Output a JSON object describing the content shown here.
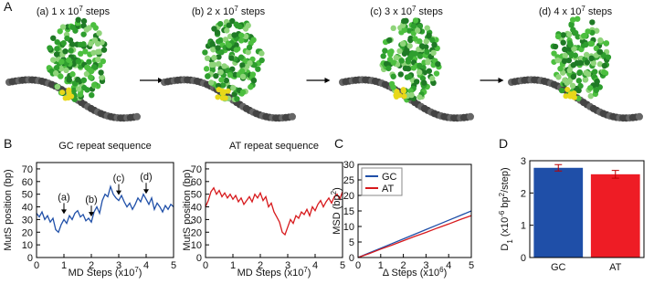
{
  "panel_labels": [
    "A",
    "B",
    "C",
    "D"
  ],
  "snapshots": [
    [
      {
        "text": "(a) 1 x 10"
      },
      {
        "text": "7",
        "shift": "super"
      },
      {
        "text": " steps"
      }
    ],
    [
      {
        "text": "(b) 2 x 10"
      },
      {
        "text": "7",
        "shift": "super"
      },
      {
        "text": " steps"
      }
    ],
    [
      {
        "text": "(c) 3 x 10"
      },
      {
        "text": "7",
        "shift": "super"
      },
      {
        "text": " steps"
      }
    ],
    [
      {
        "text": "(d) 4 x 10"
      },
      {
        "text": "7",
        "shift": "super"
      },
      {
        "text": " steps"
      }
    ]
  ],
  "chart_data": [
    {
      "type": "line",
      "title": "GC repeat sequence",
      "xlabel": [
        {
          "text": "MD Steps (x10"
        },
        {
          "text": "7",
          "shift": "super"
        },
        {
          "text": ")"
        }
      ],
      "ylabel": [
        {
          "text": "MutS position (bp)"
        }
      ],
      "xlim": [
        0,
        5
      ],
      "xticks": [
        0,
        1,
        2,
        3,
        4,
        5
      ],
      "ylim": [
        0,
        75
      ],
      "yticks": [
        0,
        10,
        20,
        30,
        40,
        50,
        60,
        70
      ],
      "x": [
        0,
        0.1,
        0.2,
        0.3,
        0.4,
        0.5,
        0.6,
        0.7,
        0.8,
        0.9,
        1,
        1.1,
        1.2,
        1.3,
        1.4,
        1.5,
        1.6,
        1.7,
        1.8,
        1.9,
        2,
        2.1,
        2.2,
        2.3,
        2.4,
        2.5,
        2.6,
        2.7,
        2.8,
        2.9,
        3,
        3.1,
        3.2,
        3.3,
        3.4,
        3.5,
        3.6,
        3.7,
        3.8,
        3.9,
        4,
        4.1,
        4.2,
        4.3,
        4.4,
        4.5,
        4.6,
        4.7,
        4.8,
        4.9,
        5
      ],
      "series": [
        {
          "color": "#1f4fa8",
          "values": [
            35,
            32,
            36,
            30,
            33,
            28,
            31,
            22,
            20,
            26,
            30,
            27,
            33,
            30,
            35,
            37,
            32,
            34,
            29,
            31,
            28,
            36,
            40,
            35,
            45,
            50,
            48,
            56,
            50,
            47,
            45,
            49,
            44,
            40,
            43,
            38,
            42,
            47,
            44,
            50,
            46,
            42,
            47,
            38,
            43,
            40,
            36,
            41,
            38,
            42,
            40
          ]
        }
      ],
      "annotations": [
        {
          "text": "(a)",
          "x": 1
        },
        {
          "text": "(b)",
          "x": 2
        },
        {
          "text": "(c)",
          "x": 3
        },
        {
          "text": "(d)",
          "x": 4
        }
      ]
    },
    {
      "type": "line",
      "title": "AT repeat sequence",
      "xlabel": [
        {
          "text": "MD Steps (x10"
        },
        {
          "text": "7",
          "shift": "super"
        },
        {
          "text": ")"
        }
      ],
      "ylabel": [
        {
          "text": "MutS position (bp)"
        }
      ],
      "xlim": [
        0,
        5
      ],
      "xticks": [
        0,
        1,
        2,
        3,
        4,
        5
      ],
      "ylim": [
        0,
        75
      ],
      "yticks": [
        0,
        10,
        20,
        30,
        40,
        50,
        60,
        70
      ],
      "x": [
        0,
        0.1,
        0.2,
        0.3,
        0.4,
        0.5,
        0.6,
        0.7,
        0.8,
        0.9,
        1,
        1.1,
        1.2,
        1.3,
        1.4,
        1.5,
        1.6,
        1.7,
        1.8,
        1.9,
        2,
        2.1,
        2.2,
        2.3,
        2.4,
        2.5,
        2.6,
        2.7,
        2.8,
        2.9,
        3,
        3.1,
        3.2,
        3.3,
        3.4,
        3.5,
        3.6,
        3.7,
        3.8,
        3.9,
        4,
        4.1,
        4.2,
        4.3,
        4.4,
        4.5,
        4.6,
        4.7,
        4.8,
        4.9,
        5
      ],
      "series": [
        {
          "color": "#d7191c",
          "values": [
            40,
            45,
            52,
            55,
            50,
            53,
            48,
            51,
            47,
            50,
            46,
            49,
            44,
            47,
            42,
            45,
            48,
            44,
            50,
            47,
            51,
            45,
            48,
            40,
            43,
            36,
            32,
            28,
            20,
            18,
            24,
            30,
            27,
            33,
            31,
            36,
            34,
            38,
            33,
            40,
            37,
            42,
            45,
            40,
            44,
            47,
            43,
            48,
            50,
            46,
            52
          ]
        }
      ]
    },
    {
      "type": "line",
      "xlabel": [
        {
          "text": "Δ Steps (x10"
        },
        {
          "text": "6",
          "shift": "super"
        },
        {
          "text": ")"
        }
      ],
      "ylabel": [
        {
          "text": "MSD (bp"
        },
        {
          "text": "2",
          "shift": "super"
        },
        {
          "text": ")"
        }
      ],
      "xlim": [
        0,
        5
      ],
      "xticks": [
        0,
        1,
        2,
        3,
        4,
        5
      ],
      "ylim": [
        0,
        30
      ],
      "yticks": [
        0,
        5,
        10,
        15,
        20,
        25,
        30
      ],
      "x": [
        0,
        0.5,
        1,
        1.5,
        2,
        2.5,
        3,
        3.5,
        4,
        4.5,
        5
      ],
      "series": [
        {
          "name": "GC",
          "color": "#1f4fa8",
          "values": [
            0,
            1.5,
            3,
            4.5,
            6,
            7.5,
            9,
            10.5,
            12,
            13.5,
            15
          ]
        },
        {
          "name": "AT",
          "color": "#d7191c",
          "values": [
            0,
            1.3,
            2.7,
            4,
            5.4,
            6.8,
            8.1,
            9.5,
            10.8,
            12.2,
            13.5
          ]
        }
      ],
      "legend": "upper-left"
    },
    {
      "type": "bar",
      "ylabel": [
        {
          "text": "D"
        },
        {
          "text": "1",
          "shift": "sub"
        },
        {
          "text": " (x10"
        },
        {
          "text": "-6",
          "shift": "super"
        },
        {
          "text": " bp"
        },
        {
          "text": "2",
          "shift": "super"
        },
        {
          "text": "/step)"
        }
      ],
      "categories": [
        "GC",
        "AT"
      ],
      "values": [
        2.78,
        2.58
      ],
      "errors": [
        0.1,
        0.12
      ],
      "colors": [
        "#1f4fa8",
        "#ee1c25"
      ],
      "ylim": [
        0,
        3
      ],
      "yticks": [
        0,
        1,
        2,
        3
      ]
    }
  ]
}
